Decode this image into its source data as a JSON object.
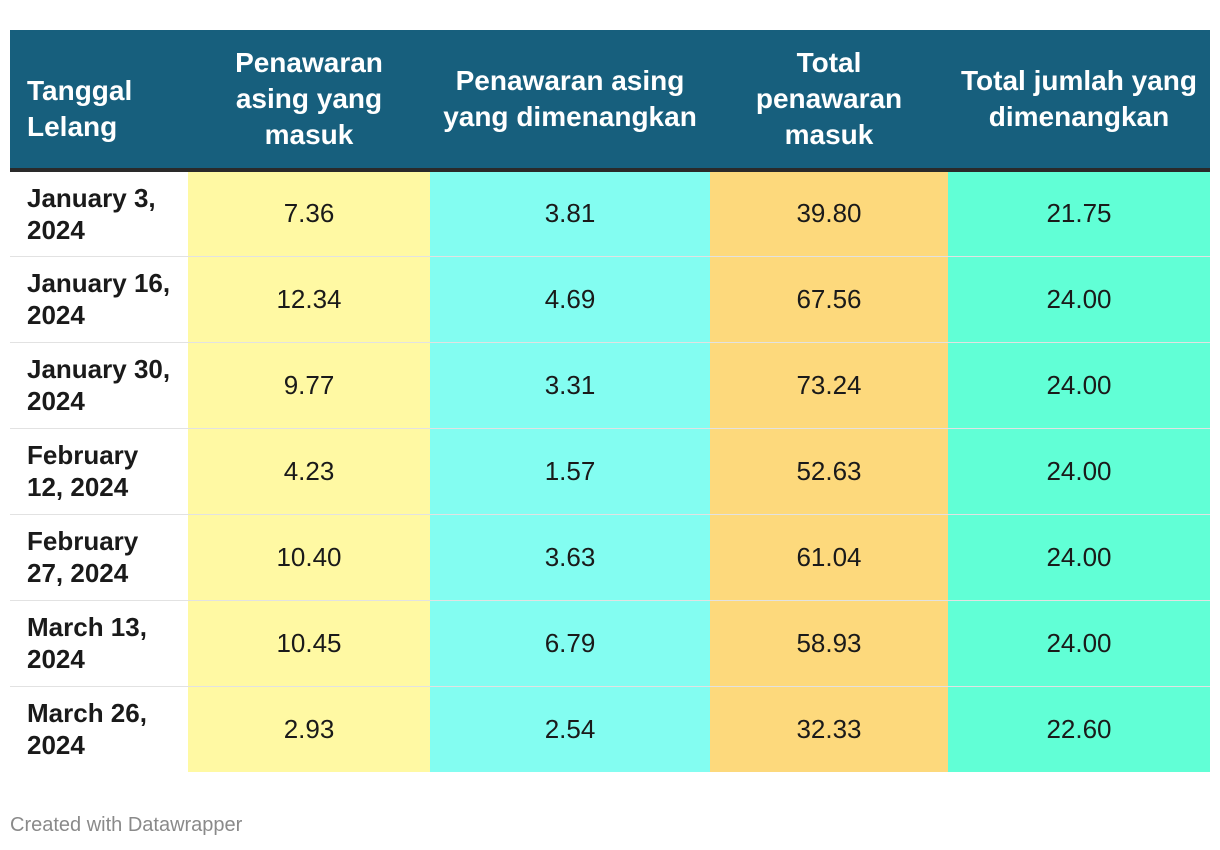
{
  "chart_data": {
    "type": "table",
    "columns": [
      "Tanggal Lelang",
      "Penawaran asing yang masuk",
      "Penawaran asing yang dimenangkan",
      "Total penawaran masuk",
      "Total jumlah yang dimenangkan"
    ],
    "column_colors": [
      "#ffffff",
      "#fff9a3",
      "#83fdf1",
      "#fdd97c",
      "#61ffd6"
    ],
    "header_color": "#175f7d",
    "rows": [
      [
        "January 3, 2024",
        "7.36",
        "3.81",
        "39.80",
        "21.75"
      ],
      [
        "January 16, 2024",
        "12.34",
        "4.69",
        "67.56",
        "24.00"
      ],
      [
        "January 30, 2024",
        "9.77",
        "3.31",
        "73.24",
        "24.00"
      ],
      [
        "February 12, 2024",
        "4.23",
        "1.57",
        "52.63",
        "24.00"
      ],
      [
        "February 27, 2024",
        "10.40",
        "3.63",
        "61.04",
        "24.00"
      ],
      [
        "March 13, 2024",
        "10.45",
        "6.79",
        "58.93",
        "24.00"
      ],
      [
        "March 26, 2024",
        "2.93",
        "2.54",
        "32.33",
        "22.60"
      ]
    ]
  },
  "footer": {
    "credit": "Created with Datawrapper"
  }
}
